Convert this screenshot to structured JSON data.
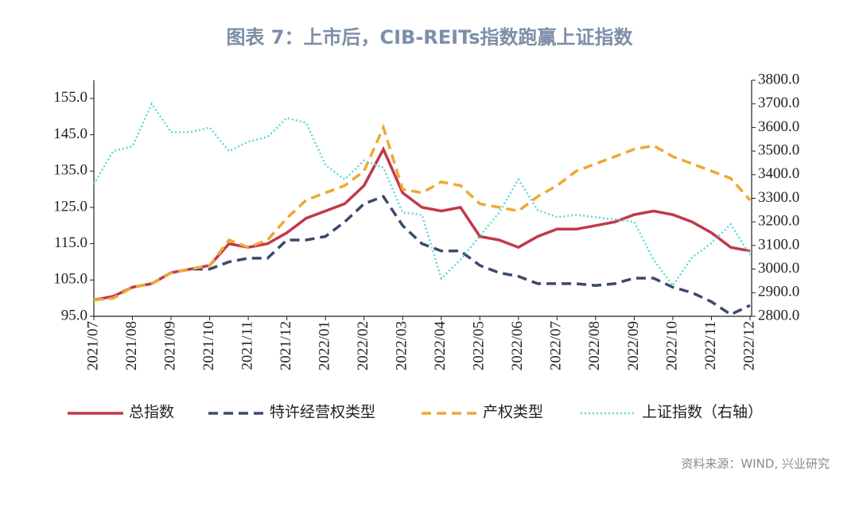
{
  "chart_data": {
    "type": "line",
    "title": "图表 7：上市后，CIB-REITs指数跑赢上证指数",
    "source": "资料来源：WIND, 兴业研究",
    "x": [
      0,
      0.5,
      1,
      1.5,
      2,
      2.5,
      3,
      3.5,
      4,
      4.5,
      5,
      5.5,
      6,
      6.5,
      7,
      7.5,
      8,
      8.5,
      9,
      9.5,
      10,
      10.5,
      11,
      11.5,
      12,
      12.5,
      13,
      13.5,
      14,
      14.5,
      15,
      15.5,
      16,
      16.5,
      17
    ],
    "xlim": [
      0,
      17
    ],
    "xticks": [
      {
        "value": 0,
        "label": "2021/07"
      },
      {
        "value": 1,
        "label": "2021/08"
      },
      {
        "value": 2,
        "label": "2021/09"
      },
      {
        "value": 3,
        "label": "2021/10"
      },
      {
        "value": 4,
        "label": "2021/11"
      },
      {
        "value": 5,
        "label": "2021/12"
      },
      {
        "value": 6,
        "label": "2022/01"
      },
      {
        "value": 7,
        "label": "2022/02"
      },
      {
        "value": 8,
        "label": "2022/03"
      },
      {
        "value": 9,
        "label": "2022/04"
      },
      {
        "value": 10,
        "label": "2022/05"
      },
      {
        "value": 11,
        "label": "2022/06"
      },
      {
        "value": 12,
        "label": "2022/07"
      },
      {
        "value": 13,
        "label": "2022/08"
      },
      {
        "value": 14,
        "label": "2022/09"
      },
      {
        "value": 15,
        "label": "2022/10"
      },
      {
        "value": 16,
        "label": "2022/11"
      },
      {
        "value": 17,
        "label": "2022/12"
      }
    ],
    "ylim": [
      95,
      160
    ],
    "yticks": [
      {
        "value": 95,
        "label": "95.0"
      },
      {
        "value": 105,
        "label": "105.0"
      },
      {
        "value": 115,
        "label": "115.0"
      },
      {
        "value": 125,
        "label": "125.0"
      },
      {
        "value": 135,
        "label": "135.0"
      },
      {
        "value": 145,
        "label": "145.0"
      },
      {
        "value": 155,
        "label": "155.0"
      }
    ],
    "y2lim": [
      2800,
      3800
    ],
    "y2ticks": [
      {
        "value": 2800,
        "label": "2800.0"
      },
      {
        "value": 2900,
        "label": "2900.0"
      },
      {
        "value": 3000,
        "label": "3000.0"
      },
      {
        "value": 3100,
        "label": "3100.0"
      },
      {
        "value": 3200,
        "label": "3200.0"
      },
      {
        "value": 3300,
        "label": "3300.0"
      },
      {
        "value": 3400,
        "label": "3400.0"
      },
      {
        "value": 3500,
        "label": "3500.0"
      },
      {
        "value": 3600,
        "label": "3600.0"
      },
      {
        "value": 3700,
        "label": "3700.0"
      },
      {
        "value": 3800,
        "label": "3800.0"
      }
    ],
    "series": [
      {
        "name": "总指数",
        "color": "#c0394b",
        "style": "solid",
        "values": [
          99.5,
          100.5,
          103,
          104,
          107,
          108,
          109,
          115,
          114,
          115,
          118,
          122,
          124,
          126,
          131,
          141,
          129,
          125,
          124,
          125,
          117,
          116,
          114,
          117,
          119,
          119,
          120,
          121,
          123,
          124,
          123,
          121,
          118,
          114,
          113
        ]
      },
      {
        "name": "特许经营权类型",
        "color": "#3b4a6b",
        "style": "dashed",
        "values": [
          99.5,
          100,
          103,
          104,
          107,
          108,
          108,
          110,
          111,
          111,
          116,
          116,
          117,
          121,
          126,
          128,
          120,
          115,
          113,
          113,
          109,
          107,
          106,
          104,
          104,
          104,
          103.5,
          104,
          105.5,
          105.5,
          103,
          101.5,
          99,
          95.5,
          98
        ]
      },
      {
        "name": "产权类型",
        "color": "#f0a830",
        "style": "dashed",
        "values": [
          99.5,
          100,
          103,
          104,
          107,
          108,
          109,
          116,
          114,
          116,
          122,
          127,
          129,
          131,
          135,
          147,
          130,
          129,
          132,
          131,
          126,
          125,
          124,
          128,
          131,
          135,
          137,
          139,
          141,
          142,
          139,
          137,
          135,
          133,
          127
        ]
      },
      {
        "name": "上证指数（右轴）",
        "color": "#5fd8d8",
        "style": "dotted",
        "axis": "y2",
        "values": [
          3360,
          3500,
          3520,
          3700,
          3580,
          3580,
          3600,
          3500,
          3540,
          3560,
          3640,
          3620,
          3440,
          3380,
          3460,
          3430,
          3240,
          3230,
          2960,
          3040,
          3140,
          3240,
          3380,
          3250,
          3220,
          3230,
          3220,
          3210,
          3200,
          3040,
          2930,
          3050,
          3110,
          3190,
          3060
        ]
      }
    ]
  }
}
